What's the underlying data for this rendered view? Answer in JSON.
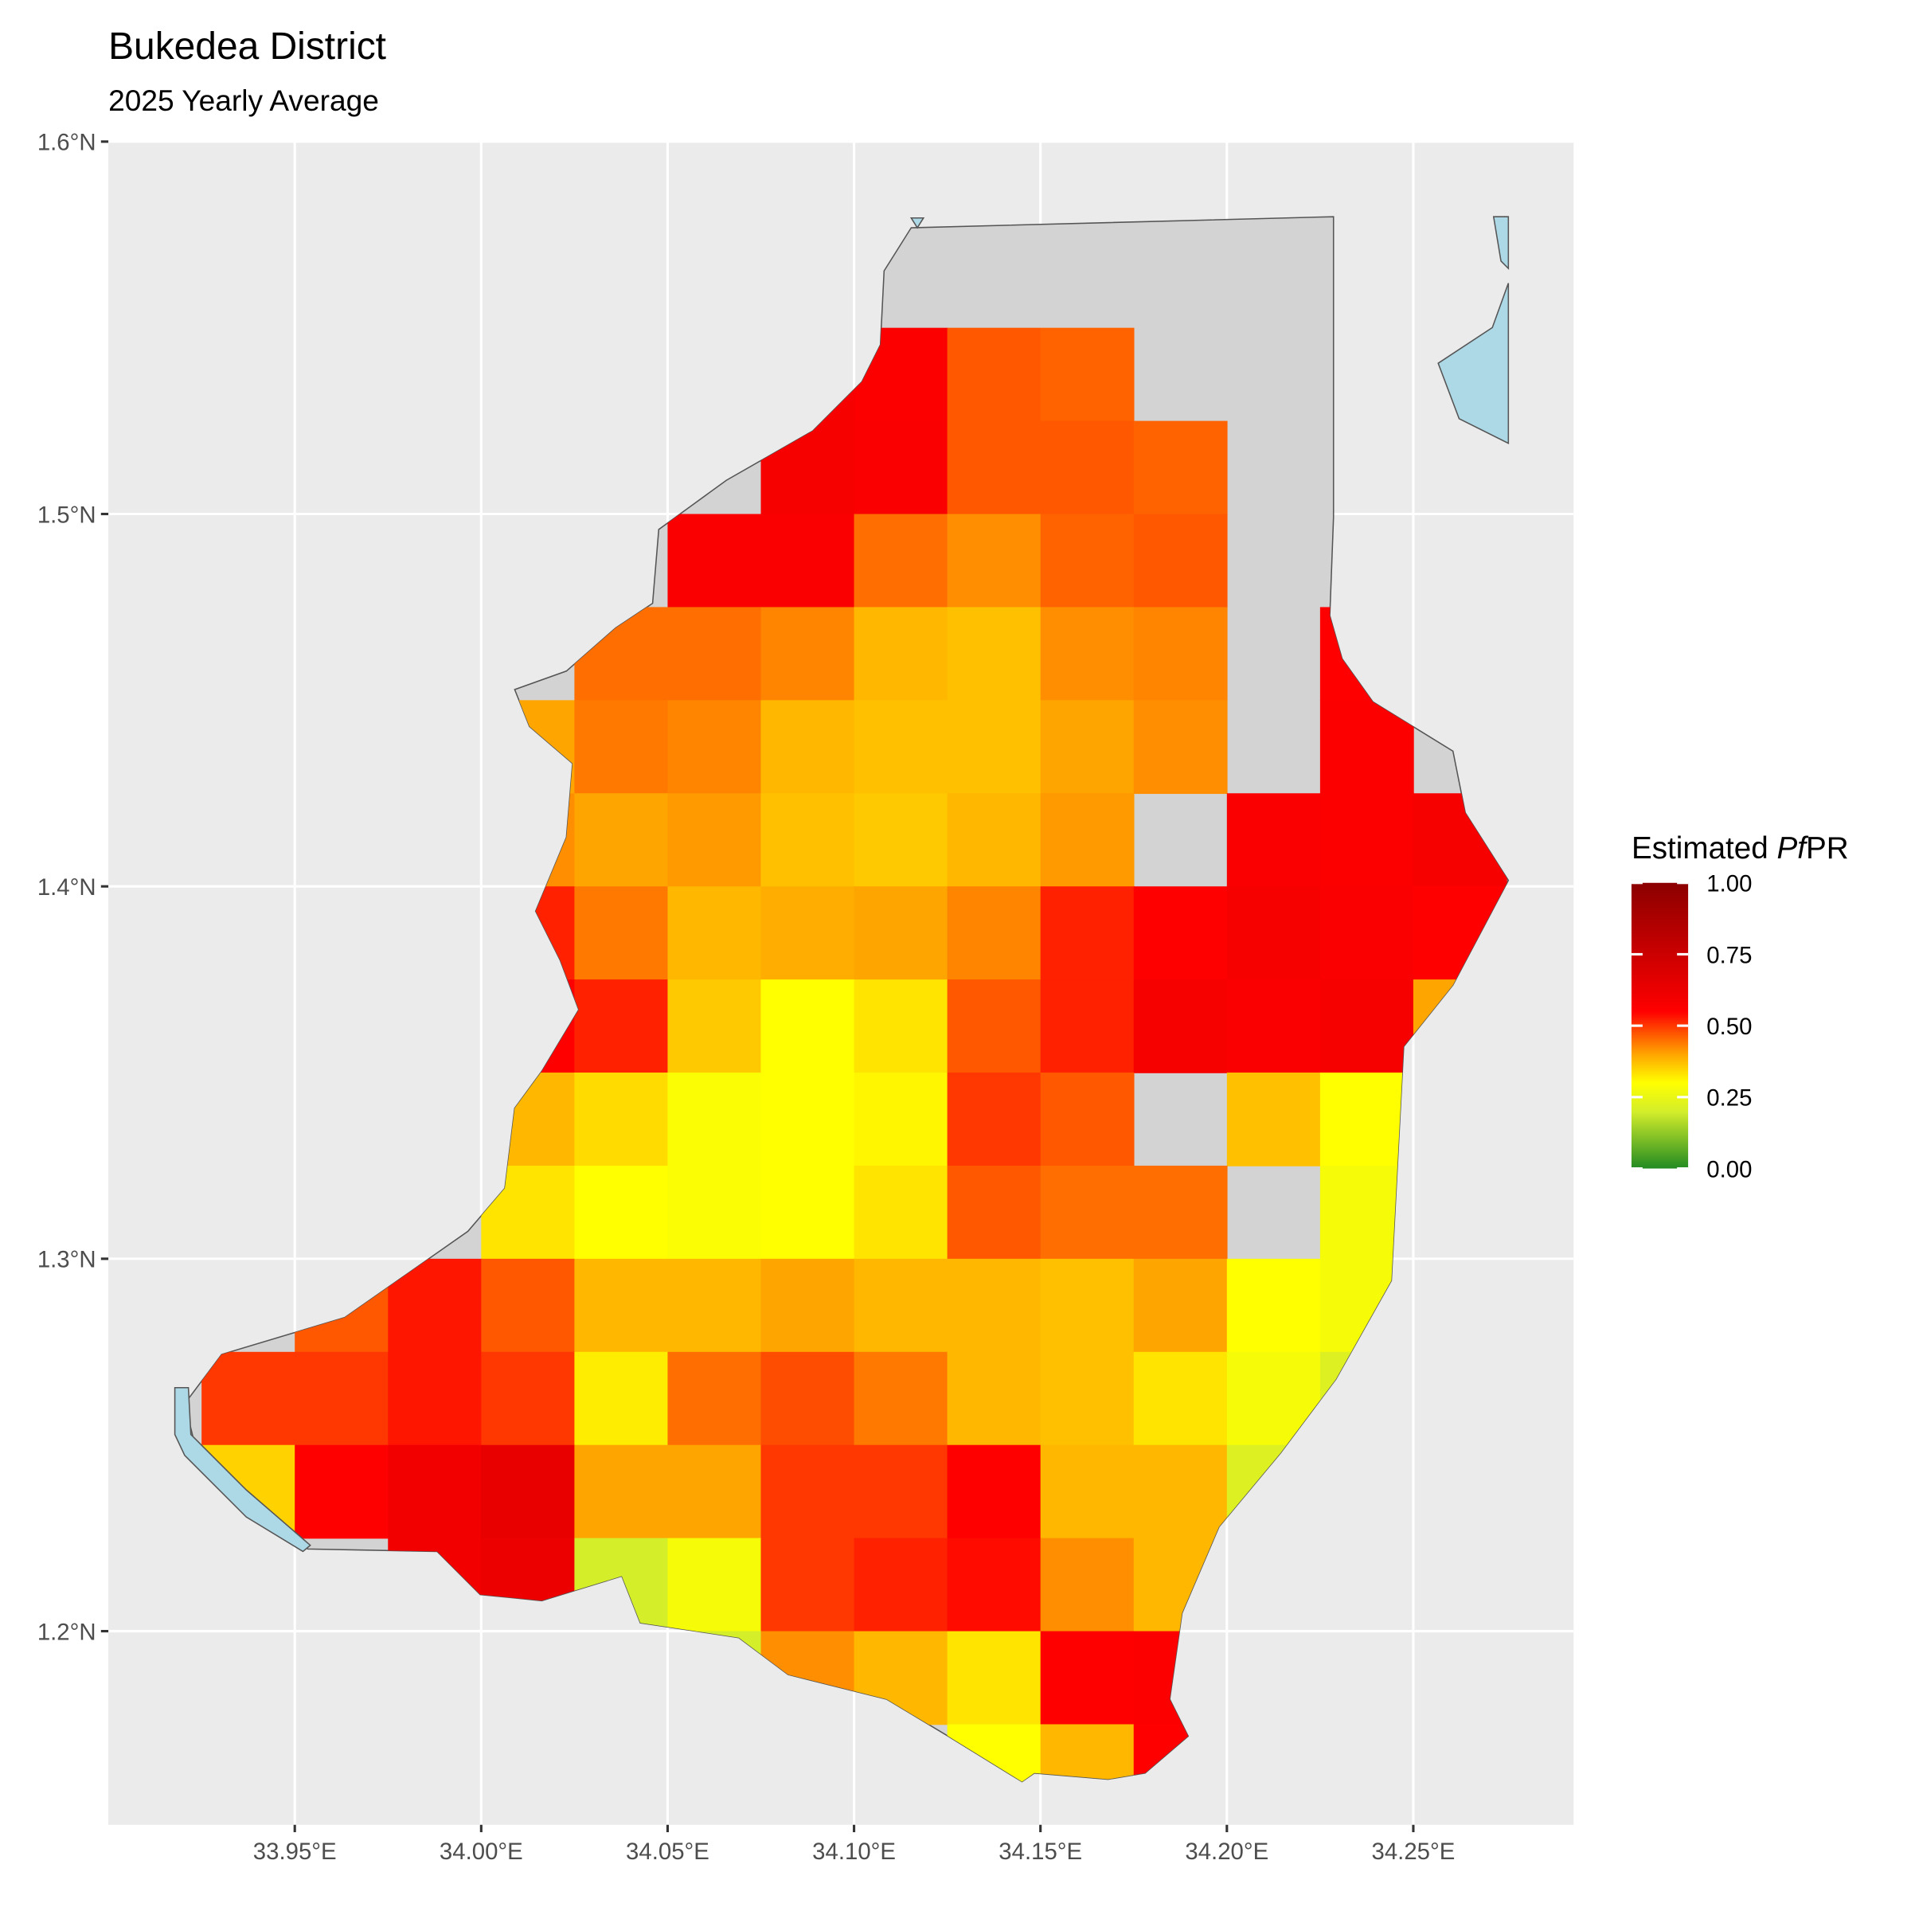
{
  "chart_data": {
    "type": "raster",
    "title": "Bukedea District",
    "subtitle": "2025 Yearly Average",
    "xlim": [
      33.9,
      34.293
    ],
    "ylim": [
      1.148,
      1.6
    ],
    "xticks": [
      {
        "value": 33.95,
        "label": "33.95°E"
      },
      {
        "value": 34.0,
        "label": "34.00°E"
      },
      {
        "value": 34.05,
        "label": "34.05°E"
      },
      {
        "value": 34.1,
        "label": "34.10°E"
      },
      {
        "value": 34.15,
        "label": "34.15°E"
      },
      {
        "value": 34.2,
        "label": "34.20°E"
      },
      {
        "value": 34.25,
        "label": "34.25°E"
      }
    ],
    "yticks": [
      {
        "value": 1.2,
        "label": "1.2°N"
      },
      {
        "value": 1.3,
        "label": "1.3°N"
      },
      {
        "value": 1.4,
        "label": "1.4°N"
      },
      {
        "value": 1.5,
        "label": "1.5°N"
      },
      {
        "value": 1.6,
        "label": "1.6°N"
      }
    ],
    "grid": true,
    "x": [
      33.9375,
      33.9625,
      33.9875,
      34.0125,
      34.0375,
      34.0625,
      34.0875,
      34.1125,
      34.1375,
      34.1625,
      34.1875,
      34.2125,
      34.2375,
      34.2625
    ],
    "y": [
      1.5375,
      1.5125,
      1.4875,
      1.4625,
      1.4375,
      1.4125,
      1.3875,
      1.3625,
      1.3375,
      1.3125,
      1.2875,
      1.2625,
      1.2375,
      1.2125,
      1.1875,
      1.1625
    ],
    "values": [
      [
        null,
        null,
        null,
        null,
        null,
        null,
        0.58,
        0.56,
        0.47,
        0.46,
        null,
        null,
        null,
        null
      ],
      [
        null,
        null,
        null,
        null,
        null,
        null,
        0.58,
        0.57,
        0.47,
        0.47,
        0.46,
        null,
        null,
        null
      ],
      [
        null,
        null,
        null,
        null,
        null,
        0.57,
        0.57,
        0.45,
        0.42,
        0.46,
        0.47,
        null,
        null,
        null
      ],
      [
        null,
        null,
        null,
        null,
        0.45,
        0.45,
        0.43,
        0.38,
        0.37,
        0.42,
        0.43,
        null,
        0.55,
        null
      ],
      [
        null,
        null,
        null,
        0.4,
        0.44,
        0.43,
        0.38,
        0.37,
        0.37,
        0.4,
        0.42,
        null,
        0.56,
        null
      ],
      [
        null,
        null,
        null,
        0.42,
        0.4,
        0.41,
        0.37,
        0.36,
        0.38,
        0.41,
        null,
        0.57,
        0.56,
        0.58
      ],
      [
        null,
        null,
        null,
        0.52,
        0.44,
        0.38,
        0.39,
        0.4,
        0.43,
        0.52,
        0.55,
        0.58,
        0.57,
        0.55
      ],
      [
        null,
        null,
        null,
        0.55,
        0.52,
        0.36,
        0.3,
        0.33,
        0.47,
        0.52,
        0.58,
        0.57,
        0.58,
        0.4
      ],
      [
        null,
        null,
        null,
        0.38,
        0.34,
        0.29,
        0.3,
        0.31,
        0.5,
        0.47,
        null,
        0.37,
        0.3,
        null
      ],
      [
        null,
        null,
        null,
        0.33,
        0.3,
        0.29,
        0.3,
        0.33,
        0.47,
        0.45,
        0.45,
        null,
        0.28,
        null
      ],
      [
        null,
        0.47,
        0.53,
        0.47,
        0.38,
        0.38,
        0.4,
        0.38,
        0.38,
        0.37,
        0.4,
        0.3,
        0.28,
        null
      ],
      [
        0.5,
        0.5,
        0.53,
        0.5,
        0.32,
        0.45,
        0.48,
        0.44,
        0.38,
        0.37,
        0.33,
        0.28,
        0.22,
        null
      ],
      [
        0.35,
        0.55,
        0.6,
        0.64,
        0.4,
        0.4,
        0.5,
        0.5,
        0.55,
        0.38,
        0.38,
        0.22,
        null,
        null
      ],
      [
        null,
        null,
        0.6,
        0.62,
        0.2,
        0.28,
        0.5,
        0.52,
        0.54,
        0.42,
        0.38,
        null,
        null,
        null
      ],
      [
        null,
        null,
        null,
        null,
        null,
        0.2,
        0.42,
        0.38,
        0.33,
        0.55,
        0.56,
        null,
        null,
        null
      ],
      [
        null,
        null,
        null,
        null,
        null,
        null,
        null,
        null,
        0.3,
        0.38,
        0.55,
        null,
        null,
        null
      ]
    ],
    "legend": {
      "title": "Estimated ",
      "title_italic": "Pf",
      "title_end": "PR",
      "limits": [
        0,
        1
      ],
      "ticks": [
        {
          "value": 0,
          "label": "0.00"
        },
        {
          "value": 0.25,
          "label": "0.25"
        },
        {
          "value": 0.5,
          "label": "0.50"
        },
        {
          "value": 0.75,
          "label": "0.75"
        },
        {
          "value": 1,
          "label": "1.00"
        }
      ],
      "colors": [
        {
          "value": 0,
          "color": "#228B22"
        },
        {
          "value": 0.2,
          "color": "#D4EE2A"
        },
        {
          "value": 0.3,
          "color": "#FFFF00"
        },
        {
          "value": 0.4,
          "color": "#FFA500"
        },
        {
          "value": 0.55,
          "color": "#FF0000"
        },
        {
          "value": 1,
          "color": "#8B0000"
        }
      ]
    }
  }
}
